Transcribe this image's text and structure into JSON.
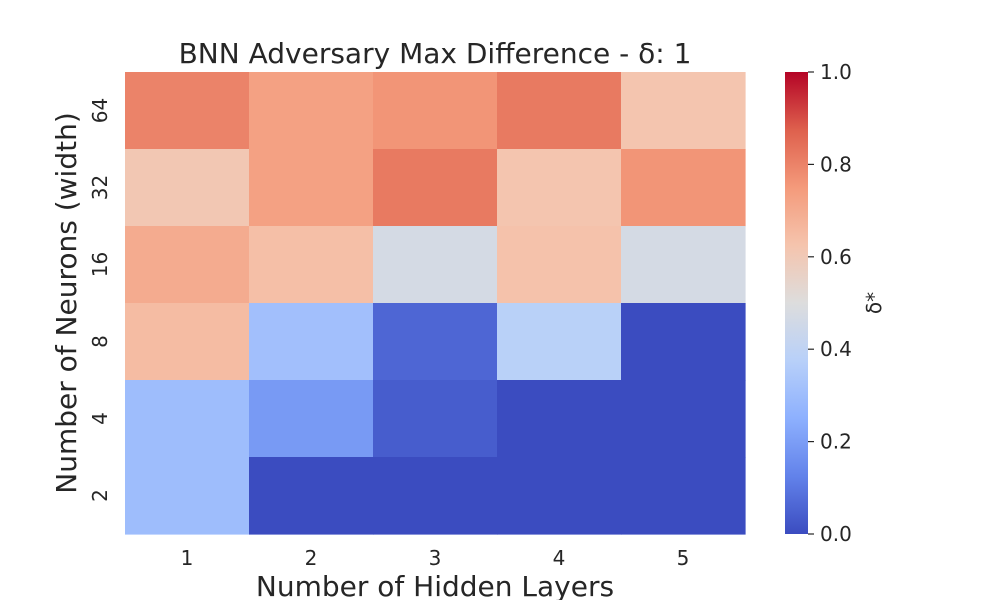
{
  "chart_data": {
    "type": "heatmap",
    "title": "BNN Adversary Max Difference - δ: 1",
    "xlabel": "Number of Hidden Layers",
    "ylabel": "Number of Neurons (width)",
    "x_categories": [
      "1",
      "2",
      "3",
      "4",
      "5"
    ],
    "y_categories": [
      "64",
      "32",
      "16",
      "8",
      "4",
      "2"
    ],
    "values": [
      [
        0.8,
        0.73,
        0.76,
        0.82,
        0.62
      ],
      [
        0.61,
        0.73,
        0.82,
        0.62,
        0.76
      ],
      [
        0.7,
        0.64,
        0.47,
        0.63,
        0.47
      ],
      [
        0.65,
        0.31,
        0.06,
        0.38,
        0.0
      ],
      [
        0.3,
        0.19,
        0.04,
        0.0,
        0.0
      ],
      [
        0.3,
        0.0,
        0.0,
        0.0,
        0.0
      ]
    ],
    "colormap": "coolwarm",
    "colorbar": {
      "label": "δ*",
      "range": [
        0.0,
        1.0
      ],
      "ticks": [
        "0.0",
        "0.2",
        "0.4",
        "0.6",
        "0.8",
        "1.0"
      ]
    },
    "colors": {
      "text": "#262626",
      "background": "#ffffff"
    }
  }
}
